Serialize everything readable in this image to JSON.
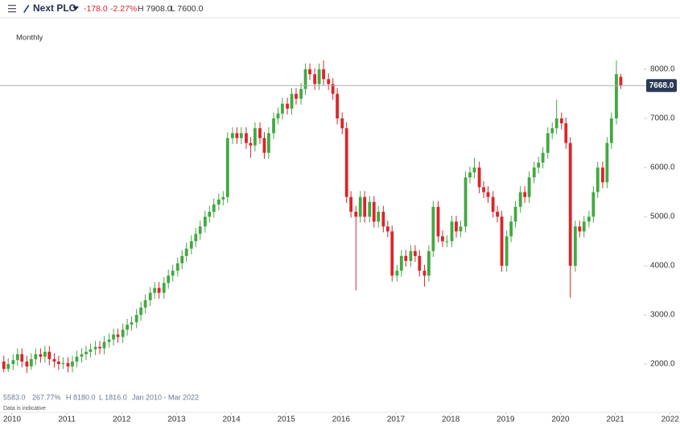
{
  "header": {
    "symbol": "Next PLC",
    "change": "-178.0",
    "change_pct": "-2.27%",
    "high": "H 7908.0",
    "low": "L 7600.0"
  },
  "interval": "Monthly",
  "footer": {
    "last": "5583.0",
    "pct": "267.77%",
    "high": "H 8180.0",
    "low": "L 1816.0",
    "range": "Jan 2010 - Mar 2022",
    "note": "Data is indicative"
  },
  "chart_data": {
    "type": "candlestick",
    "up_color": "#43a843",
    "down_color": "#d9262b",
    "grid": false,
    "xlim": [
      2009.78,
      2022.18
    ],
    "xticks": [
      2010,
      2011,
      2012,
      2013,
      2014,
      2015,
      2016,
      2017,
      2018,
      2019,
      2020,
      2021,
      2022
    ],
    "ylim": [
      1460,
      8460
    ],
    "yticks": [
      {
        "value": 2000,
        "label": "2000.0"
      },
      {
        "value": 3000,
        "label": "3000.0"
      },
      {
        "value": 4000,
        "label": "4000.0"
      },
      {
        "value": 5000,
        "label": "5000.0"
      },
      {
        "value": 6000,
        "label": "6000.0"
      },
      {
        "value": 7000,
        "label": "7000.0"
      },
      {
        "value": 8000,
        "label": "8000.0"
      }
    ],
    "last_price": {
      "value": 7668,
      "label": "7668.0"
    },
    "x": [
      2009.85,
      2009.93,
      2010.02,
      2010.1,
      2010.18,
      2010.27,
      2010.35,
      2010.43,
      2010.52,
      2010.6,
      2010.68,
      2010.77,
      2010.85,
      2010.93,
      2011.02,
      2011.1,
      2011.18,
      2011.27,
      2011.35,
      2011.43,
      2011.52,
      2011.6,
      2011.68,
      2011.77,
      2011.85,
      2011.93,
      2012.02,
      2012.1,
      2012.18,
      2012.27,
      2012.35,
      2012.43,
      2012.52,
      2012.6,
      2012.68,
      2012.77,
      2012.85,
      2012.93,
      2013.02,
      2013.1,
      2013.18,
      2013.27,
      2013.35,
      2013.43,
      2013.52,
      2013.6,
      2013.68,
      2013.77,
      2013.85,
      2013.93,
      2014.02,
      2014.1,
      2014.18,
      2014.27,
      2014.35,
      2014.43,
      2014.52,
      2014.6,
      2014.68,
      2014.77,
      2014.85,
      2014.93,
      2015.02,
      2015.1,
      2015.18,
      2015.27,
      2015.35,
      2015.43,
      2015.52,
      2015.6,
      2015.68,
      2015.77,
      2015.85,
      2015.93,
      2016.02,
      2016.1,
      2016.18,
      2016.27,
      2016.35,
      2016.43,
      2016.52,
      2016.6,
      2016.68,
      2016.77,
      2016.85,
      2016.93,
      2017.02,
      2017.1,
      2017.18,
      2017.27,
      2017.35,
      2017.43,
      2017.52,
      2017.6,
      2017.68,
      2017.77,
      2017.85,
      2017.93,
      2018.02,
      2018.1,
      2018.18,
      2018.27,
      2018.35,
      2018.43,
      2018.52,
      2018.6,
      2018.68,
      2018.77,
      2018.85,
      2018.93,
      2019.02,
      2019.1,
      2019.18,
      2019.27,
      2019.35,
      2019.43,
      2019.52,
      2019.6,
      2019.68,
      2019.77,
      2019.85,
      2019.93,
      2020.02,
      2020.1,
      2020.18,
      2020.27,
      2020.35,
      2020.43,
      2020.52,
      2020.6,
      2020.68,
      2020.77,
      2020.85,
      2020.93,
      2021.02,
      2021.1
    ],
    "open": [
      2050,
      1900,
      2000,
      2080,
      2200,
      2050,
      1950,
      2100,
      2200,
      2150,
      2250,
      2100,
      2050,
      2000,
      2020,
      1950,
      2050,
      2150,
      2200,
      2250,
      2300,
      2350,
      2320,
      2450,
      2500,
      2600,
      2550,
      2700,
      2800,
      2850,
      3000,
      3150,
      3300,
      3450,
      3550,
      3450,
      3650,
      3800,
      3900,
      4050,
      4200,
      4350,
      4500,
      4650,
      4800,
      5000,
      5100,
      5250,
      5350,
      5400,
      6600,
      6700,
      6600,
      6700,
      6500,
      6450,
      6800,
      6600,
      6300,
      6700,
      7000,
      7100,
      7300,
      7200,
      7500,
      7400,
      7600,
      8000,
      7900,
      7700,
      8000,
      7800,
      7700,
      7500,
      7000,
      6800,
      5400,
      5100,
      5000,
      5400,
      5000,
      5300,
      4900,
      5100,
      4800,
      4700,
      3800,
      3900,
      4200,
      4100,
      4300,
      4200,
      3900,
      3800,
      4300,
      5200,
      4600,
      4500,
      4500,
      4900,
      4700,
      4800,
      5800,
      5900,
      6000,
      5600,
      5500,
      5400,
      5100,
      5000,
      4000,
      4600,
      4900,
      5200,
      5500,
      5400,
      5800,
      6000,
      6100,
      6300,
      6700,
      6800,
      7000,
      6900,
      6500,
      4000,
      4800,
      4700,
      4900,
      5000,
      5500,
      6000,
      5700,
      6500,
      7000,
      7846
    ],
    "high": [
      2170,
      2120,
      2200,
      2320,
      2320,
      2170,
      2220,
      2320,
      2320,
      2370,
      2370,
      2220,
      2170,
      2140,
      2140,
      2170,
      2270,
      2320,
      2370,
      2420,
      2470,
      2470,
      2570,
      2620,
      2720,
      2720,
      2820,
      2920,
      2970,
      3120,
      3270,
      3420,
      3570,
      3670,
      3670,
      3770,
      3920,
      4020,
      4170,
      4320,
      4470,
      4620,
      4770,
      4920,
      5120,
      5220,
      5370,
      5470,
      5520,
      6720,
      6820,
      6820,
      6820,
      6820,
      6620,
      6920,
      6920,
      6720,
      6820,
      7120,
      7220,
      7420,
      7420,
      7620,
      7620,
      7720,
      8120,
      8120,
      8020,
      8120,
      8180,
      7920,
      7820,
      7620,
      7120,
      6920,
      5520,
      5220,
      5520,
      5520,
      5420,
      5420,
      5220,
      5220,
      4920,
      4820,
      4020,
      4320,
      4320,
      4420,
      4420,
      4320,
      4020,
      4420,
      5320,
      5320,
      4720,
      4620,
      5020,
      5020,
      4920,
      5920,
      6020,
      6200,
      6120,
      5720,
      5620,
      5520,
      5220,
      5120,
      4720,
      5020,
      5320,
      5620,
      5620,
      5920,
      6120,
      6220,
      6420,
      6820,
      6920,
      7380,
      7120,
      7020,
      6620,
      4920,
      4920,
      5020,
      5120,
      5620,
      6120,
      6120,
      6620,
      7120,
      8180,
      7908
    ],
    "low": [
      1830,
      1840,
      1880,
      1960,
      1930,
      1816,
      1880,
      1980,
      2030,
      2030,
      1980,
      1930,
      1880,
      1900,
      1830,
      1830,
      1930,
      2030,
      2080,
      2130,
      2180,
      2200,
      2200,
      2330,
      2380,
      2430,
      2430,
      2580,
      2680,
      2730,
      2880,
      3030,
      3180,
      3330,
      3330,
      3330,
      3530,
      3680,
      3780,
      3930,
      4080,
      4230,
      4380,
      4530,
      4680,
      4880,
      4980,
      5130,
      5230,
      5280,
      6480,
      6480,
      6480,
      6380,
      6200,
      6330,
      6480,
      6180,
      6180,
      6580,
      6880,
      6980,
      7080,
      7080,
      7280,
      7280,
      7480,
      7780,
      7580,
      7580,
      7680,
      7580,
      7380,
      6880,
      6680,
      5280,
      4980,
      3500,
      4880,
      4880,
      4880,
      4780,
      4780,
      4680,
      4580,
      3680,
      3680,
      3780,
      3980,
      3980,
      4080,
      3780,
      3580,
      3680,
      4180,
      4480,
      4380,
      4380,
      4380,
      4580,
      4580,
      4680,
      5680,
      5780,
      5480,
      5380,
      5280,
      4980,
      4880,
      3880,
      3880,
      4480,
      4780,
      5080,
      5280,
      5280,
      5680,
      5880,
      5980,
      6180,
      6580,
      6680,
      6780,
      6380,
      3350,
      3880,
      4580,
      4580,
      4780,
      4880,
      5380,
      5580,
      5580,
      6380,
      6880,
      7600
    ],
    "close": [
      1900,
      2000,
      2080,
      2200,
      2050,
      1950,
      2100,
      2200,
      2150,
      2250,
      2100,
      2050,
      2000,
      2020,
      1950,
      2050,
      2150,
      2200,
      2250,
      2300,
      2350,
      2320,
      2450,
      2500,
      2600,
      2550,
      2700,
      2800,
      2850,
      3000,
      3150,
      3300,
      3450,
      3550,
      3450,
      3650,
      3800,
      3900,
      4050,
      4200,
      4350,
      4500,
      4650,
      4800,
      5000,
      5100,
      5250,
      5350,
      5400,
      6600,
      6700,
      6600,
      6700,
      6500,
      6450,
      6800,
      6600,
      6300,
      6700,
      7000,
      7100,
      7300,
      7200,
      7500,
      7400,
      7600,
      8000,
      7900,
      7700,
      8000,
      7800,
      7700,
      7500,
      7000,
      6800,
      5400,
      5100,
      5000,
      5400,
      5000,
      5300,
      4900,
      5100,
      4800,
      4700,
      3800,
      3900,
      4200,
      4100,
      4300,
      4200,
      3900,
      3800,
      4300,
      5200,
      4600,
      4500,
      4500,
      4900,
      4700,
      4800,
      5800,
      5900,
      6000,
      5600,
      5500,
      5400,
      5100,
      5000,
      4000,
      4600,
      4900,
      5200,
      5500,
      5400,
      5800,
      6000,
      6100,
      6300,
      6700,
      6800,
      7000,
      6900,
      6500,
      4000,
      4800,
      4700,
      4900,
      5000,
      5500,
      6000,
      5700,
      6500,
      7000,
      7900,
      7668
    ]
  }
}
